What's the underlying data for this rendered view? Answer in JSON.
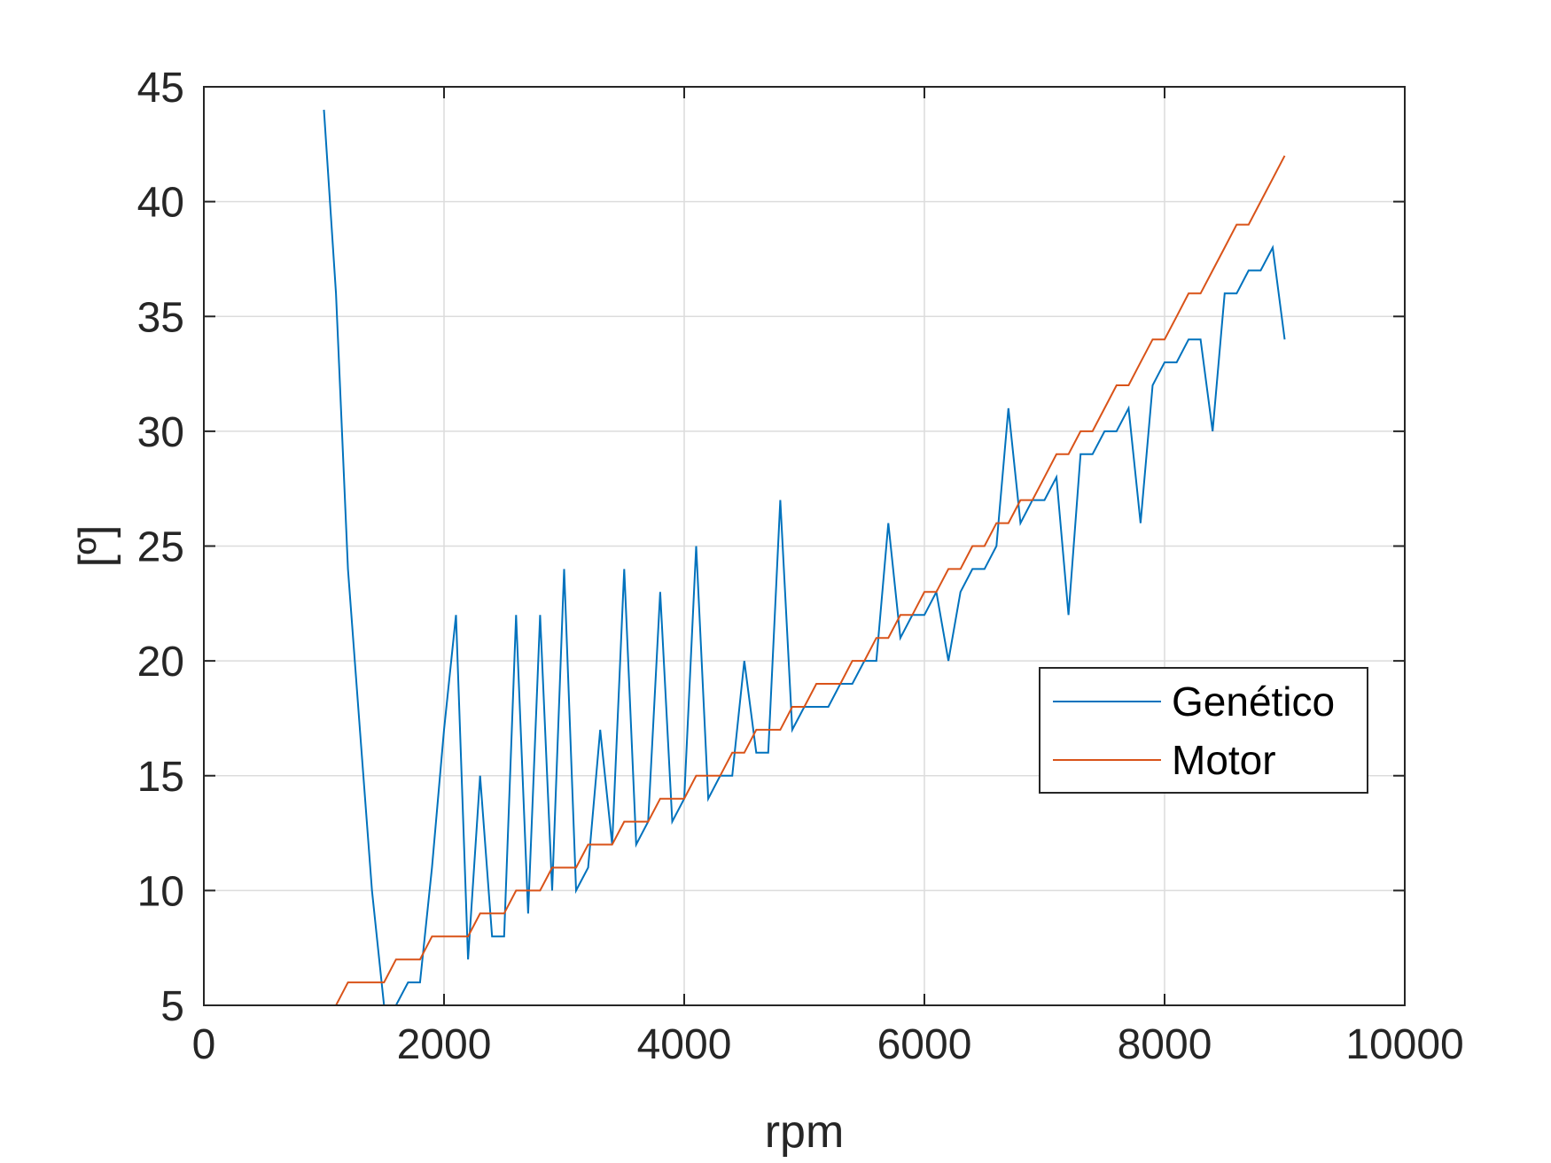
{
  "chart_data": {
    "type": "line",
    "xlabel": "rpm",
    "ylabel": "[º]",
    "xlim": [
      0,
      10000
    ],
    "ylim": [
      5,
      45
    ],
    "xticks": [
      0,
      2000,
      4000,
      6000,
      8000,
      10000
    ],
    "xtick_labels": [
      "0",
      "2000",
      "4000",
      "6000",
      "8000",
      "10000"
    ],
    "yticks": [
      5,
      10,
      15,
      20,
      25,
      30,
      35,
      40,
      45
    ],
    "ytick_labels": [
      "5",
      "10",
      "15",
      "20",
      "25",
      "30",
      "35",
      "40",
      "45"
    ],
    "grid": true,
    "legend_position": "right",
    "series": [
      {
        "name": "Genético",
        "color": "#0072BD",
        "x": [
          1000,
          1100,
          1200,
          1300,
          1400,
          1500,
          1600,
          1700,
          1800,
          1900,
          2000,
          2100,
          2200,
          2300,
          2400,
          2500,
          2600,
          2700,
          2800,
          2900,
          3000,
          3100,
          3200,
          3300,
          3400,
          3500,
          3600,
          3700,
          3800,
          3900,
          4000,
          4100,
          4200,
          4300,
          4400,
          4500,
          4600,
          4700,
          4800,
          4900,
          5000,
          5100,
          5200,
          5300,
          5400,
          5500,
          5600,
          5700,
          5800,
          5900,
          6000,
          6100,
          6200,
          6300,
          6400,
          6500,
          6600,
          6700,
          6800,
          6900,
          7000,
          7100,
          7200,
          7300,
          7400,
          7500,
          7600,
          7700,
          7800,
          7900,
          8000,
          8100,
          8200,
          8300,
          8400,
          8500,
          8600,
          8700,
          8800,
          8900,
          9000
        ],
        "y": [
          44,
          36,
          24,
          17,
          10,
          5,
          5,
          6,
          6,
          11,
          17,
          22,
          7,
          15,
          8,
          8,
          22,
          9,
          22,
          10,
          24,
          10,
          11,
          17,
          12,
          24,
          12,
          13,
          23,
          13,
          14,
          25,
          14,
          15,
          15,
          20,
          16,
          16,
          27,
          17,
          18,
          18,
          18,
          19,
          19,
          20,
          20,
          26,
          21,
          22,
          22,
          23,
          20,
          23,
          24,
          24,
          25,
          31,
          26,
          27,
          27,
          28,
          22,
          29,
          29,
          30,
          30,
          31,
          26,
          32,
          33,
          33,
          34,
          34,
          30,
          36,
          36,
          37,
          37,
          38,
          34
        ]
      },
      {
        "name": "Motor",
        "color": "#D95319",
        "x": [
          1000,
          1100,
          1200,
          1300,
          1400,
          1500,
          1600,
          1700,
          1800,
          1900,
          2000,
          2100,
          2200,
          2300,
          2400,
          2500,
          2600,
          2700,
          2800,
          2900,
          3000,
          3100,
          3200,
          3300,
          3400,
          3500,
          3600,
          3700,
          3800,
          3900,
          4000,
          4100,
          4200,
          4300,
          4400,
          4500,
          4600,
          4700,
          4800,
          4900,
          5000,
          5100,
          5200,
          5300,
          5400,
          5500,
          5600,
          5700,
          5800,
          5900,
          6000,
          6100,
          6200,
          6300,
          6400,
          6500,
          6600,
          6700,
          6800,
          6900,
          7000,
          7100,
          7200,
          7300,
          7400,
          7500,
          7600,
          7700,
          7800,
          7900,
          8000,
          8100,
          8200,
          8300,
          8400,
          8500,
          8600,
          8700,
          8800,
          8900,
          9000
        ],
        "y": [
          5,
          5,
          6,
          6,
          6,
          6,
          7,
          7,
          7,
          8,
          8,
          8,
          8,
          9,
          9,
          9,
          10,
          10,
          10,
          11,
          11,
          11,
          12,
          12,
          12,
          13,
          13,
          13,
          14,
          14,
          14,
          15,
          15,
          15,
          16,
          16,
          17,
          17,
          17,
          18,
          18,
          19,
          19,
          19,
          20,
          20,
          21,
          21,
          22,
          22,
          23,
          23,
          24,
          24,
          25,
          25,
          26,
          26,
          27,
          27,
          28,
          29,
          29,
          30,
          30,
          31,
          32,
          32,
          33,
          34,
          34,
          35,
          36,
          36,
          37,
          38,
          39,
          39,
          40,
          41,
          42
        ]
      }
    ]
  }
}
